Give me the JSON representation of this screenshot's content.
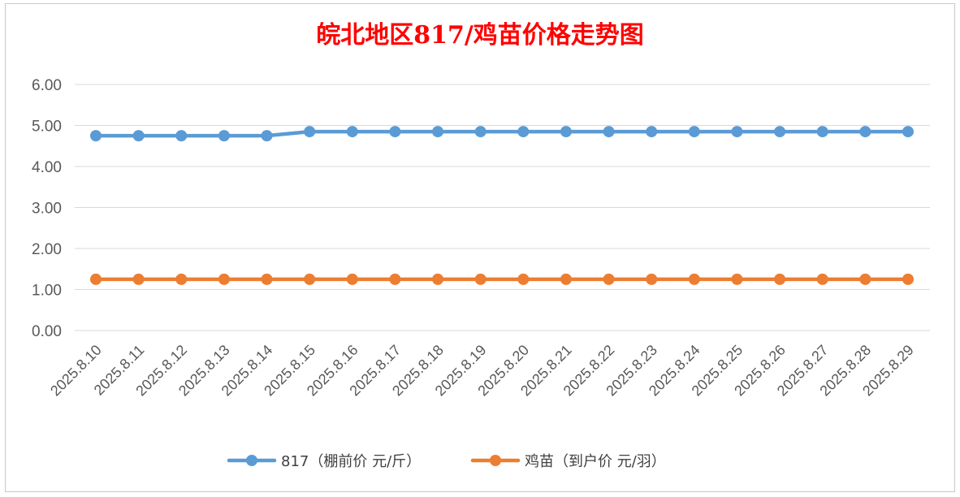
{
  "chart_data": {
    "type": "line",
    "title": "皖北地区817/鸡苗价格走势图",
    "xlabel": "",
    "ylabel": "",
    "categories": [
      "2025.8.10",
      "2025.8.11",
      "2025.8.12",
      "2025.8.13",
      "2025.8.14",
      "2025.8.15",
      "2025.8.16",
      "2025.8.17",
      "2025.8.18",
      "2025.8.19",
      "2025.8.20",
      "2025.8.21",
      "2025.8.22",
      "2025.8.23",
      "2025.8.24",
      "2025.8.25",
      "2025.8.26",
      "2025.8.27",
      "2025.8.28",
      "2025.8.29"
    ],
    "yticks": [
      "0.00",
      "1.00",
      "2.00",
      "3.00",
      "4.00",
      "5.00",
      "6.00"
    ],
    "ylim": [
      0,
      6
    ],
    "grid": true,
    "legend_position": "bottom",
    "series": [
      {
        "name": "817（棚前价 元/斤）",
        "color": "#5b9bd5",
        "values": [
          4.75,
          4.75,
          4.75,
          4.75,
          4.75,
          4.85,
          4.85,
          4.85,
          4.85,
          4.85,
          4.85,
          4.85,
          4.85,
          4.85,
          4.85,
          4.85,
          4.85,
          4.85,
          4.85,
          4.85
        ]
      },
      {
        "name": "鸡苗（到户价 元/羽）",
        "color": "#ed7d31",
        "values": [
          1.25,
          1.25,
          1.25,
          1.25,
          1.25,
          1.25,
          1.25,
          1.25,
          1.25,
          1.25,
          1.25,
          1.25,
          1.25,
          1.25,
          1.25,
          1.25,
          1.25,
          1.25,
          1.25,
          1.25
        ]
      }
    ]
  }
}
